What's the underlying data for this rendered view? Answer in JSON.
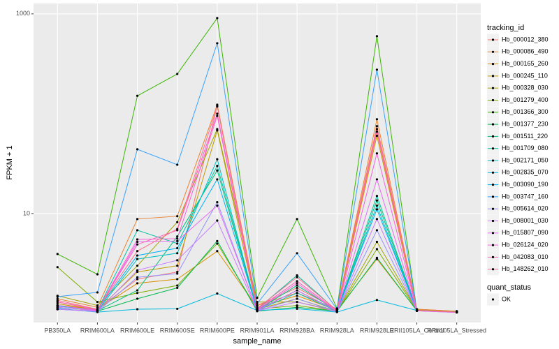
{
  "chart_data": {
    "type": "line",
    "x_label": "sample_name",
    "y_label": "FPKM + 1",
    "categories": [
      "PB350LA",
      "RRIM600LA",
      "RRIM600LE",
      "RRIM600SE",
      "RRIM600PE",
      "RRIM901LA",
      "RRIM928BA",
      "RRIM928LA",
      "RRIM928LE",
      "RRII105LA_Control",
      "RRII105LA_Stressed"
    ],
    "ylim": [
      0.81,
      1270
    ],
    "yticks": [
      10,
      1000
    ],
    "log_scale": true,
    "grid": true,
    "legend_position": "right",
    "legend_title": "tracking_id",
    "point_color": "#000000",
    "point_legend": {
      "title": "quant_status",
      "labels": [
        "OK"
      ]
    },
    "series": [
      {
        "name": "Hb_000012_380",
        "color": "#F8766D",
        "values": [
          1.3,
          1.1,
          2.2,
          2.6,
          120,
          1.2,
          1.8,
          1.1,
          75,
          1.1,
          1.05
        ]
      },
      {
        "name": "Hb_000086_490",
        "color": "#EA8331",
        "values": [
          1.4,
          1.15,
          8.8,
          9.4,
          123,
          1.2,
          1.6,
          1.1,
          88,
          1.1,
          1.05
        ]
      },
      {
        "name": "Hb_000165_260",
        "color": "#D89000",
        "values": [
          1.2,
          1.1,
          2.0,
          2.2,
          4.2,
          1.15,
          1.5,
          1.08,
          3.5,
          1.07,
          1.04
        ]
      },
      {
        "name": "Hb_000245_110",
        "color": "#C09B00",
        "values": [
          1.25,
          1.08,
          2.6,
          3.0,
          68,
          1.1,
          1.4,
          1.05,
          60,
          1.07,
          1.03
        ]
      },
      {
        "name": "Hb_000328_030",
        "color": "#A3A500",
        "values": [
          1.5,
          1.2,
          3.0,
          8.2,
          70,
          1.3,
          1.3,
          1.06,
          5.2,
          1.08,
          1.04
        ]
      },
      {
        "name": "Hb_001279_400",
        "color": "#7CAE00",
        "values": [
          2.9,
          1.3,
          1.6,
          1.9,
          5.0,
          1.1,
          1.2,
          1.05,
          4.4,
          1.07,
          1.03
        ]
      },
      {
        "name": "Hb_001366_300",
        "color": "#39B600",
        "values": [
          3.93,
          2.46,
          151,
          250,
          907,
          1.43,
          8.8,
          1.12,
          597,
          1.07,
          1.03
        ]
      },
      {
        "name": "Hb_001377_230",
        "color": "#00BB4E",
        "values": [
          1.1,
          1.05,
          1.4,
          1.8,
          5.3,
          1.05,
          1.15,
          1.05,
          3.6,
          1.06,
          1.03
        ]
      },
      {
        "name": "Hb_001511_220",
        "color": "#00BF7D",
        "values": [
          1.15,
          1.06,
          1.7,
          5.9,
          27,
          1.08,
          1.9,
          1.06,
          13.5,
          1.07,
          1.03
        ]
      },
      {
        "name": "Hb_001709_080",
        "color": "#00C1A3",
        "values": [
          1.2,
          1.07,
          6.8,
          5.0,
          30,
          1.1,
          2.4,
          1.06,
          15,
          1.07,
          1.03
        ]
      },
      {
        "name": "Hb_002171_050",
        "color": "#00BFC4",
        "values": [
          1.1,
          1.05,
          3.5,
          4.0,
          35,
          1.07,
          1.6,
          1.05,
          12,
          1.06,
          1.03
        ]
      },
      {
        "name": "Hb_002835_070",
        "color": "#00BAE0",
        "values": [
          1.12,
          1.03,
          1.1,
          1.11,
          1.58,
          1.07,
          1.11,
          1.03,
          1.36,
          1.07,
          1.03
        ]
      },
      {
        "name": "Hb_003090_190",
        "color": "#00B0F6",
        "values": [
          1.18,
          1.08,
          3.8,
          4.5,
          22,
          1.08,
          1.7,
          1.06,
          11,
          1.07,
          1.03
        ]
      },
      {
        "name": "Hb_003747_160",
        "color": "#35A2FF",
        "values": [
          1.47,
          1.62,
          44,
          30.8,
          508,
          1.25,
          4.0,
          1.1,
          276,
          1.07,
          1.03
        ]
      },
      {
        "name": "Hb_005614_020",
        "color": "#9590FF",
        "values": [
          1.1,
          1.04,
          2.3,
          2.5,
          13,
          1.06,
          1.4,
          1.04,
          6.8,
          1.06,
          1.02
        ]
      },
      {
        "name": "Hb_008001_030",
        "color": "#C77CFF",
        "values": [
          1.1,
          1.05,
          2.7,
          3.4,
          8.5,
          1.06,
          1.3,
          1.04,
          8.8,
          1.06,
          1.02
        ]
      },
      {
        "name": "Hb_015807_090",
        "color": "#E76BF3",
        "values": [
          1.15,
          1.06,
          5.2,
          5.3,
          12,
          1.07,
          1.7,
          1.05,
          22,
          1.06,
          1.03
        ]
      },
      {
        "name": "Hb_026124_020",
        "color": "#FA62DB",
        "values": [
          1.2,
          1.07,
          5.5,
          5.6,
          95,
          1.08,
          2.0,
          1.05,
          40,
          1.06,
          1.03
        ]
      },
      {
        "name": "Hb_042083_010",
        "color": "#FF62BC",
        "values": [
          1.3,
          1.08,
          4.9,
          6.8,
          100,
          1.1,
          2.1,
          1.06,
          70,
          1.07,
          1.03
        ]
      },
      {
        "name": "Hb_148262_010",
        "color": "#FF6C91",
        "values": [
          1.35,
          1.1,
          4.2,
          7.0,
          118,
          1.12,
          2.3,
          1.07,
          66,
          1.07,
          1.03
        ]
      }
    ]
  }
}
